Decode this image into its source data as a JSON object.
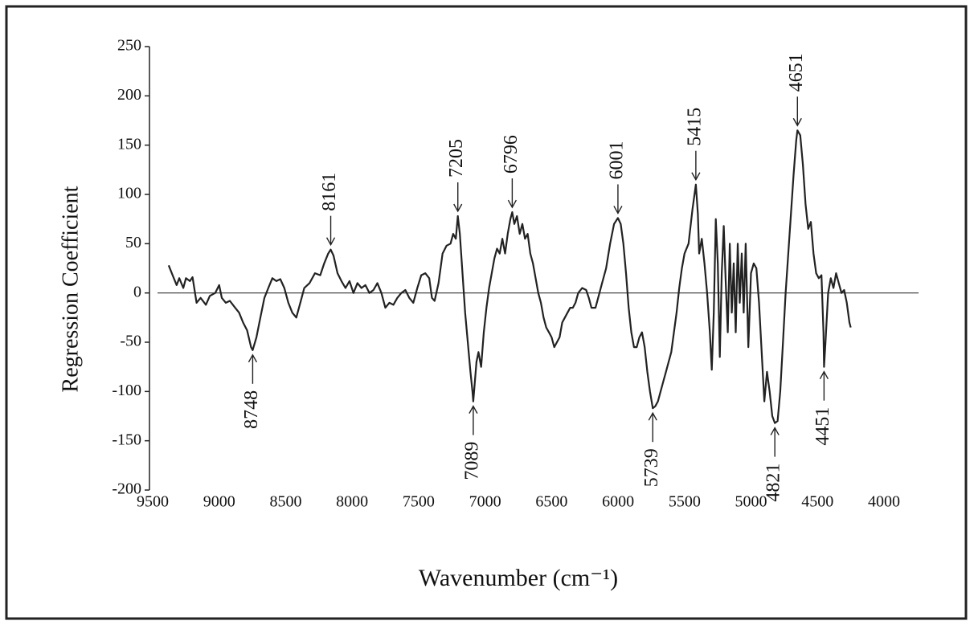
{
  "chart_data": {
    "type": "line",
    "xlabel": "Wavenumber (cm⁻¹)",
    "ylabel": "Regression  Coefficient",
    "x": [
      9380,
      9350,
      9320,
      9300,
      9270,
      9250,
      9220,
      9200,
      9170,
      9140,
      9100,
      9070,
      9030,
      9000,
      8980,
      8950,
      8920,
      8880,
      8850,
      8820,
      8790,
      8760,
      8748,
      8720,
      8690,
      8660,
      8630,
      8600,
      8570,
      8540,
      8510,
      8480,
      8450,
      8420,
      8390,
      8360,
      8320,
      8280,
      8240,
      8210,
      8180,
      8161,
      8140,
      8110,
      8080,
      8050,
      8020,
      7990,
      7960,
      7930,
      7900,
      7870,
      7840,
      7810,
      7780,
      7750,
      7720,
      7690,
      7660,
      7630,
      7600,
      7570,
      7540,
      7510,
      7480,
      7450,
      7420,
      7400,
      7380,
      7350,
      7320,
      7290,
      7260,
      7240,
      7220,
      7205,
      7190,
      7170,
      7150,
      7130,
      7110,
      7095,
      7089,
      7080,
      7065,
      7050,
      7030,
      7010,
      6990,
      6970,
      6950,
      6930,
      6910,
      6890,
      6870,
      6850,
      6830,
      6810,
      6796,
      6780,
      6760,
      6740,
      6720,
      6700,
      6680,
      6660,
      6640,
      6620,
      6600,
      6580,
      6560,
      6540,
      6520,
      6500,
      6480,
      6460,
      6440,
      6420,
      6400,
      6380,
      6360,
      6340,
      6320,
      6300,
      6270,
      6240,
      6220,
      6200,
      6170,
      6150,
      6120,
      6090,
      6060,
      6030,
      6001,
      5980,
      5960,
      5940,
      5920,
      5900,
      5880,
      5860,
      5840,
      5820,
      5800,
      5780,
      5760,
      5739,
      5720,
      5700,
      5680,
      5660,
      5640,
      5620,
      5600,
      5580,
      5560,
      5540,
      5520,
      5500,
      5470,
      5440,
      5415,
      5400,
      5390,
      5370,
      5350,
      5330,
      5310,
      5295,
      5280,
      5265,
      5250,
      5235,
      5220,
      5205,
      5190,
      5175,
      5160,
      5145,
      5130,
      5115,
      5100,
      5085,
      5070,
      5055,
      5040,
      5020,
      5000,
      4980,
      4960,
      4940,
      4920,
      4900,
      4880,
      4860,
      4840,
      4821,
      4800,
      4780,
      4760,
      4740,
      4720,
      4700,
      4680,
      4660,
      4651,
      4630,
      4610,
      4590,
      4570,
      4550,
      4530,
      4510,
      4490,
      4470,
      4455,
      4451,
      4440,
      4420,
      4400,
      4380,
      4360,
      4340,
      4320,
      4300,
      4280,
      4260,
      4250
    ],
    "values": [
      28,
      18,
      8,
      15,
      5,
      15,
      12,
      16,
      -10,
      -5,
      -12,
      -3,
      0,
      8,
      -5,
      -10,
      -8,
      -15,
      -20,
      -30,
      -38,
      -55,
      -58,
      -45,
      -25,
      -5,
      5,
      15,
      12,
      14,
      5,
      -10,
      -20,
      -25,
      -10,
      5,
      10,
      20,
      18,
      30,
      40,
      44,
      38,
      20,
      12,
      5,
      12,
      0,
      10,
      5,
      8,
      0,
      3,
      10,
      0,
      -15,
      -10,
      -12,
      -5,
      0,
      3,
      -5,
      -10,
      5,
      18,
      20,
      15,
      -5,
      -8,
      10,
      40,
      48,
      50,
      60,
      55,
      78,
      60,
      20,
      -20,
      -50,
      -80,
      -100,
      -110,
      -95,
      -70,
      -60,
      -75,
      -40,
      -15,
      5,
      20,
      35,
      45,
      40,
      55,
      40,
      60,
      75,
      82,
      70,
      78,
      60,
      70,
      55,
      60,
      40,
      30,
      15,
      0,
      -10,
      -25,
      -35,
      -40,
      -45,
      -55,
      -50,
      -45,
      -30,
      -25,
      -20,
      -15,
      -15,
      -10,
      0,
      5,
      3,
      -5,
      -15,
      -15,
      -5,
      10,
      25,
      50,
      70,
      76,
      70,
      50,
      20,
      -15,
      -40,
      -55,
      -55,
      -45,
      -40,
      -55,
      -80,
      -100,
      -117,
      -115,
      -110,
      -100,
      -90,
      -80,
      -70,
      -60,
      -40,
      -20,
      5,
      25,
      40,
      50,
      85,
      110,
      80,
      40,
      55,
      30,
      0,
      -40,
      -78,
      -20,
      75,
      30,
      -65,
      20,
      68,
      10,
      -40,
      50,
      -20,
      30,
      -40,
      50,
      -10,
      40,
      -20,
      50,
      -55,
      20,
      30,
      25,
      -10,
      -60,
      -110,
      -80,
      -100,
      -125,
      -132,
      -130,
      -100,
      -50,
      0,
      40,
      80,
      120,
      155,
      165,
      160,
      130,
      90,
      65,
      72,
      40,
      20,
      15,
      18,
      -40,
      -75,
      -50,
      0,
      15,
      5,
      20,
      10,
      0,
      3,
      -10,
      -30,
      -35
    ],
    "color": "#222222",
    "xlim": [
      9500,
      4000
    ],
    "xticks": [
      9500,
      9000,
      8500,
      8000,
      7500,
      7000,
      6500,
      6000,
      5500,
      5000,
      4500,
      4000
    ],
    "ylim": [
      -200,
      250
    ],
    "yticks": [
      -200,
      -150,
      -100,
      -50,
      0,
      50,
      100,
      150,
      200,
      250
    ],
    "annotations": [
      {
        "text": "8748",
        "x": 8748,
        "y": -58
      },
      {
        "text": "8161",
        "x": 8161,
        "y": 44
      },
      {
        "text": "7205",
        "x": 7205,
        "y": 78
      },
      {
        "text": "7089",
        "x": 7089,
        "y": -110
      },
      {
        "text": "6796",
        "x": 6796,
        "y": 82
      },
      {
        "text": "6001",
        "x": 6001,
        "y": 76
      },
      {
        "text": "5739",
        "x": 5739,
        "y": -117
      },
      {
        "text": "5415",
        "x": 5415,
        "y": 110
      },
      {
        "text": "4821",
        "x": 4821,
        "y": -132
      },
      {
        "text": "4651",
        "x": 4651,
        "y": 165
      },
      {
        "text": "4451",
        "x": 4451,
        "y": -75
      }
    ]
  }
}
